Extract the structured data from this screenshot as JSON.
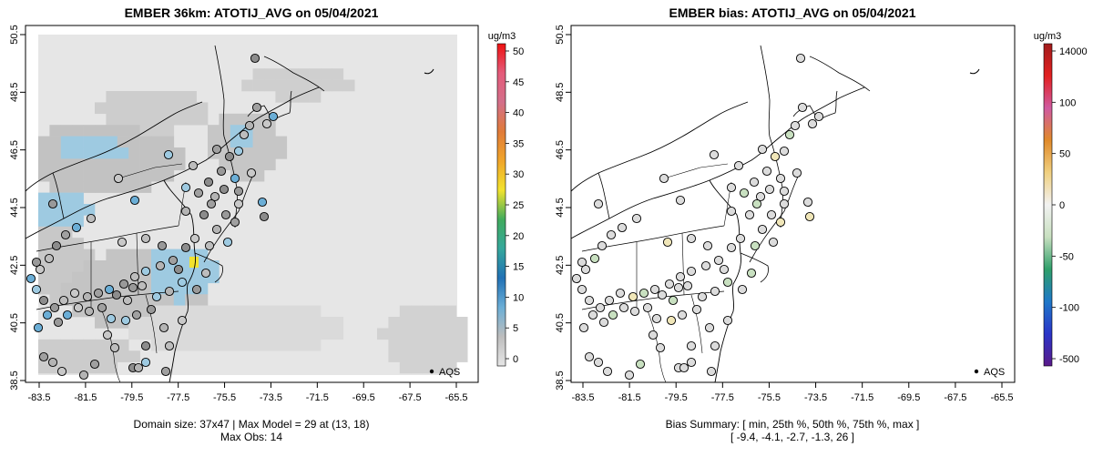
{
  "panels": [
    {
      "title": "EMBER 36km: ATOTIJ_AVG on 05/04/2021",
      "x_ticks": [
        "-83.5",
        "-81.5",
        "-79.5",
        "-77.5",
        "-75.5",
        "-73.5",
        "-71.5",
        "-69.5",
        "-67.5",
        "-65.5"
      ],
      "y_ticks": [
        "38.5",
        "40.5",
        "42.5",
        "44.5",
        "46.5",
        "48.5",
        "50.5"
      ],
      "legend_label": "AQS",
      "colorbar": {
        "unit": "ug/m3",
        "ticks": [
          "0",
          "5",
          "10",
          "15",
          "20",
          "25",
          "30",
          "35",
          "40",
          "45",
          "50"
        ],
        "colors": [
          "#e6e6e6",
          "#bdbdbd",
          "#6baed6",
          "#2171b5",
          "#35a79c",
          "#41ab5d",
          "#f2e32e",
          "#f0a52a",
          "#e07b39",
          "#d36f8a",
          "#e45b7a",
          "#ee1111"
        ]
      },
      "caption_lines": [
        "Domain size: 37x47 | Max Model = 29 at (13, 18)",
        "Max Obs: 14"
      ]
    },
    {
      "title": "EMBER bias: ATOTIJ_AVG on 05/04/2021",
      "x_ticks": [
        "-83.5",
        "-81.5",
        "-79.5",
        "-77.5",
        "-75.5",
        "-73.5",
        "-71.5",
        "-69.5",
        "-67.5",
        "-65.5"
      ],
      "y_ticks": [
        "38.5",
        "40.5",
        "42.5",
        "44.5",
        "46.5",
        "48.5",
        "50.5"
      ],
      "legend_label": "AQS",
      "colorbar": {
        "unit": "ug/m3",
        "ticks": [
          "-500",
          "-100",
          "-50",
          "0",
          "50",
          "100",
          "14000"
        ],
        "colors": [
          "#5a1a8a",
          "#2a35c8",
          "#1f78c8",
          "#2f9f6a",
          "#c8e0c0",
          "#f2f2f2",
          "#f0d080",
          "#e08a2a",
          "#d05aa0",
          "#e22020",
          "#a11c1c"
        ]
      },
      "caption_lines": [
        "Bias Summary: [ min, 25th %, 50th %, 75th %, max ]",
        "[ -9.4,   -4.1,   -2.7,   -1.3,   26 ]"
      ]
    }
  ]
}
